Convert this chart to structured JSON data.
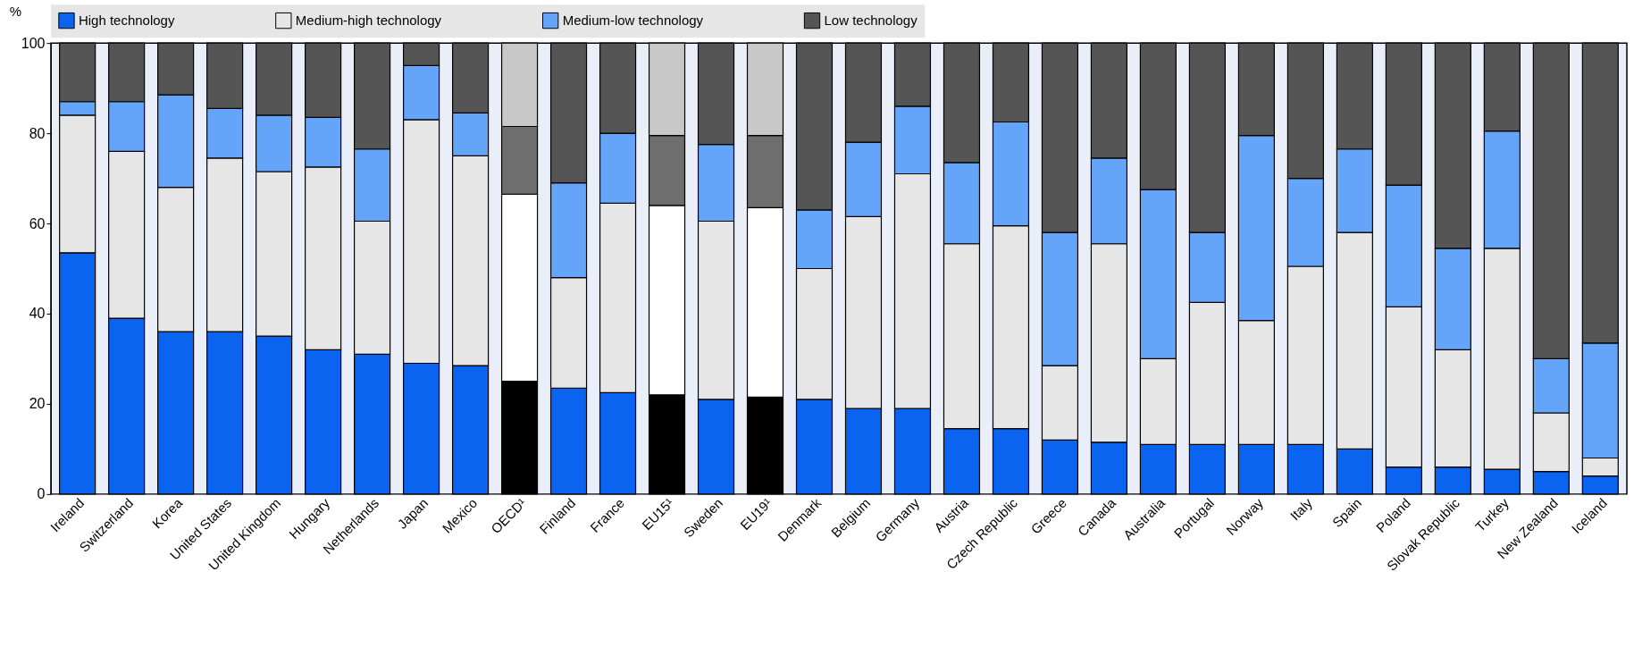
{
  "chart_data": {
    "type": "bar",
    "stacked": true,
    "ylabel": "%",
    "ylim": [
      0,
      100
    ],
    "yticks": [
      0,
      20,
      40,
      60,
      80,
      100
    ],
    "grid": false,
    "legend": "top",
    "categories": [
      "Ireland",
      "Switzerland",
      "Korea",
      "United States",
      "United Kingdom",
      "Hungary",
      "Netherlands",
      "Japan",
      "Mexico",
      "OECD¹",
      "Finland",
      "France",
      "EU15¹",
      "Sweden",
      "EU19¹",
      "Denmark",
      "Belgium",
      "Germany",
      "Austria",
      "Czech Republic",
      "Greece",
      "Canada",
      "Australia",
      "Portugal",
      "Norway",
      "Italy",
      "Spain",
      "Poland",
      "Slovak Republic",
      "Turkey",
      "New Zealand",
      "Iceland"
    ],
    "series": [
      {
        "name": "High technology",
        "color": "#0a64f0",
        "colors": [
          "#0a64f0",
          "#0a64f0",
          "#0a64f0",
          "#0a64f0",
          "#0a64f0",
          "#0a64f0",
          "#0a64f0",
          "#0a64f0",
          "#0a64f0",
          "#000000",
          "#0a64f0",
          "#0a64f0",
          "#000000",
          "#0a64f0",
          "#000000",
          "#0a64f0",
          "#0a64f0",
          "#0a64f0",
          "#0a64f0",
          "#0a64f0",
          "#0a64f0",
          "#0a64f0",
          "#0a64f0",
          "#0a64f0",
          "#0a64f0",
          "#0a64f0",
          "#0a64f0",
          "#0a64f0",
          "#0a64f0",
          "#0a64f0",
          "#0a64f0",
          "#0a64f0"
        ],
        "values": [
          53.5,
          39,
          36,
          36,
          35,
          32,
          31,
          29,
          28.5,
          25,
          23.5,
          22.5,
          22,
          21,
          21.5,
          21,
          19,
          19,
          14.5,
          14.5,
          12,
          11.5,
          11,
          11,
          11,
          11,
          10,
          6,
          6,
          5.5,
          5,
          4
        ]
      },
      {
        "name": "Medium-high technology",
        "color": "#e6e6e6",
        "colors": [
          "#e6e6e6",
          "#e6e6e6",
          "#e6e6e6",
          "#e6e6e6",
          "#e6e6e6",
          "#e6e6e6",
          "#e6e6e6",
          "#e6e6e6",
          "#e6e6e6",
          "#ffffff",
          "#e6e6e6",
          "#e6e6e6",
          "#ffffff",
          "#e6e6e6",
          "#ffffff",
          "#e6e6e6",
          "#e6e6e6",
          "#e6e6e6",
          "#e6e6e6",
          "#e6e6e6",
          "#e6e6e6",
          "#e6e6e6",
          "#e6e6e6",
          "#e6e6e6",
          "#e6e6e6",
          "#e6e6e6",
          "#e6e6e6",
          "#e6e6e6",
          "#e6e6e6",
          "#e6e6e6",
          "#e6e6e6",
          "#e6e6e6"
        ],
        "values": [
          30.5,
          37,
          32,
          38.5,
          36.5,
          40.5,
          29.5,
          54,
          46.5,
          41.5,
          24.5,
          42,
          42,
          39.5,
          42,
          29,
          42.5,
          52,
          41,
          45,
          16.5,
          44,
          19,
          31.5,
          27.5,
          39.5,
          48,
          35.5,
          26,
          49,
          13,
          4
        ]
      },
      {
        "name": "Medium-low technology",
        "color": "#64a5fa",
        "colors": [
          "#64a5fa",
          "#64a5fa",
          "#64a5fa",
          "#64a5fa",
          "#64a5fa",
          "#64a5fa",
          "#64a5fa",
          "#64a5fa",
          "#64a5fa",
          "#6e6e6e",
          "#64a5fa",
          "#64a5fa",
          "#6e6e6e",
          "#64a5fa",
          "#6e6e6e",
          "#64a5fa",
          "#64a5fa",
          "#64a5fa",
          "#64a5fa",
          "#64a5fa",
          "#64a5fa",
          "#64a5fa",
          "#64a5fa",
          "#64a5fa",
          "#64a5fa",
          "#64a5fa",
          "#64a5fa",
          "#64a5fa",
          "#64a5fa",
          "#64a5fa",
          "#64a5fa",
          "#64a5fa"
        ],
        "values": [
          3,
          11,
          20.5,
          11,
          12.5,
          11,
          16,
          12,
          9.5,
          15,
          21,
          15.5,
          15.5,
          17,
          16,
          13,
          16.5,
          15,
          18,
          23,
          29.5,
          19,
          37.5,
          15.5,
          41,
          19.5,
          18.5,
          27,
          22.5,
          26,
          12,
          25.5
        ]
      },
      {
        "name": "Low technology",
        "color": "#555555",
        "colors": [
          "#555555",
          "#555555",
          "#555555",
          "#555555",
          "#555555",
          "#555555",
          "#555555",
          "#555555",
          "#555555",
          "#c8c8c8",
          "#555555",
          "#555555",
          "#c8c8c8",
          "#555555",
          "#c8c8c8",
          "#555555",
          "#555555",
          "#555555",
          "#555555",
          "#555555",
          "#555555",
          "#555555",
          "#555555",
          "#555555",
          "#555555",
          "#555555",
          "#555555",
          "#555555",
          "#555555",
          "#555555",
          "#555555",
          "#555555"
        ],
        "values": [
          13,
          13,
          11.5,
          14.5,
          16,
          16.5,
          23.5,
          5,
          15.5,
          18.5,
          31,
          20,
          20.5,
          22.5,
          20.5,
          37,
          22,
          14,
          26.5,
          17.5,
          42,
          25.5,
          32.5,
          42,
          20.5,
          30,
          23.5,
          31.5,
          45.5,
          19.5,
          70,
          66.5
        ]
      }
    ]
  }
}
